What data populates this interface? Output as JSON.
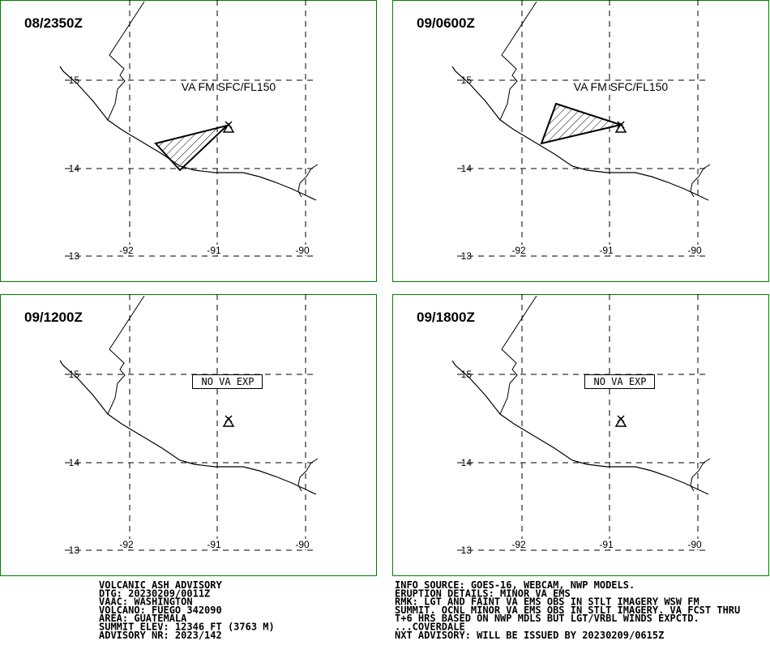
{
  "panels": [
    {
      "time": "08/2350Z",
      "label": "VA FM SFC/FL150"
    },
    {
      "time": "09/0600Z",
      "label": "VA FM SFC/FL150"
    },
    {
      "time": "09/1200Z",
      "label": "NO VA EXP"
    },
    {
      "time": "09/1800Z",
      "label": "NO VA EXP"
    }
  ],
  "grid": {
    "lat": [
      "15",
      "14",
      "13"
    ],
    "lon": [
      "-92",
      "-91",
      "-90"
    ]
  },
  "advisory": {
    "left": [
      "VOLCANIC ASH ADVISORY",
      "DTG: 20230209/0011Z",
      "VAAC: WASHINGTON",
      "VOLCANO: FUEGO 342090",
      "AREA: GUATEMALA",
      "SUMMIT ELEV: 12346 FT (3763 M)",
      "ADVISORY NR: 2023/142"
    ],
    "right": [
      "INFO SOURCE: GOES-16, WEBCAM, NWP MODELS.",
      "ERUPTION DETAILS: MINOR VA EMS",
      "RMK: LGT AND FAINT VA EMS OBS IN STLT IMAGERY WSW FM",
      "SUMMIT. OCNL MINOR VA EMS OBS IN STLT IMAGERY. VA FCST THRU",
      "T+6 HRS BASED ON NWP MDLS BUT LGT/VRBL WINDS EXPCTD.",
      "...COVERDALE",
      "NXT ADVISORY: WILL BE ISSUED BY 20230209/0615Z"
    ]
  }
}
